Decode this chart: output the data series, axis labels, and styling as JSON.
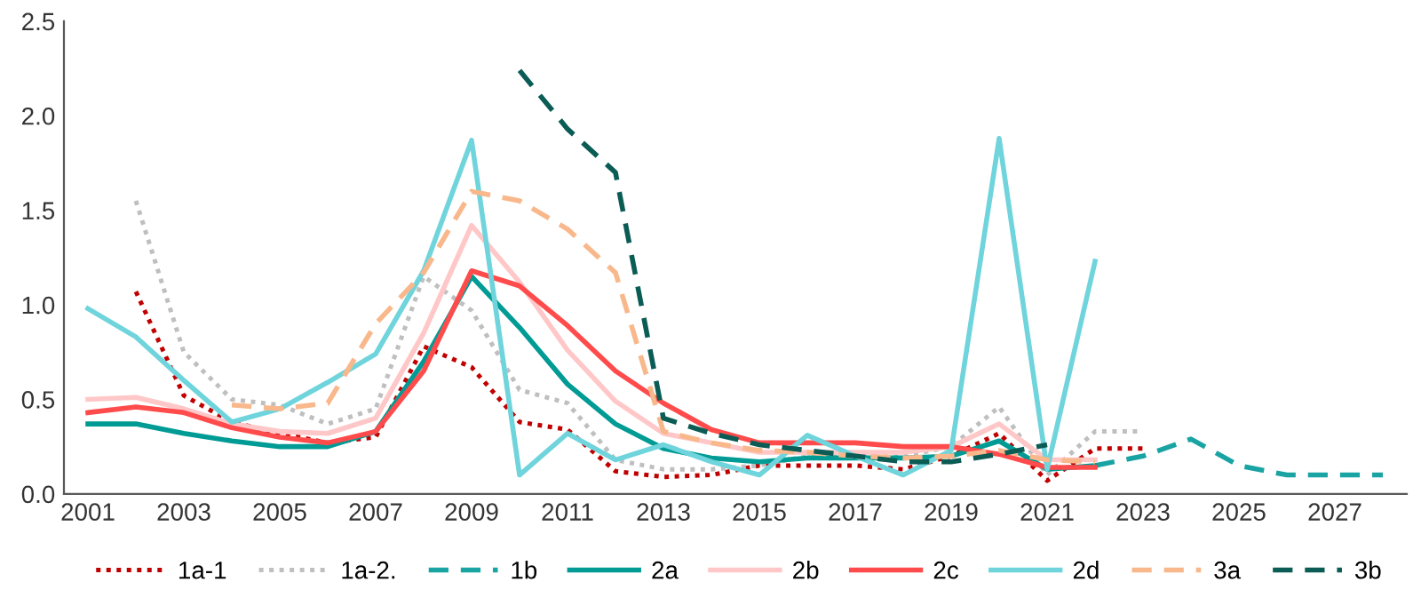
{
  "chart_data": {
    "type": "line",
    "x": [
      2001,
      2002,
      2003,
      2004,
      2005,
      2006,
      2007,
      2008,
      2009,
      2010,
      2011,
      2012,
      2013,
      2014,
      2015,
      2016,
      2017,
      2018,
      2019,
      2020,
      2021,
      2022,
      2023,
      2024,
      2025,
      2026,
      2027,
      2028
    ],
    "xlim": [
      2000.5,
      2028.5
    ],
    "xticks": [
      2001,
      2003,
      2005,
      2007,
      2009,
      2011,
      2013,
      2015,
      2017,
      2019,
      2021,
      2023,
      2025,
      2027
    ],
    "ylim": [
      0,
      2.5
    ],
    "yticks": [
      {
        "value": 0,
        "label": "0.0"
      },
      {
        "value": 0.5,
        "label": "0.5"
      },
      {
        "value": 1,
        "label": "1.0"
      },
      {
        "value": 1.5,
        "label": "1.5"
      },
      {
        "value": 2,
        "label": "2.0"
      },
      {
        "value": 2.5,
        "label": "2.5"
      }
    ],
    "grid": false,
    "legend": "bottom",
    "series": [
      {
        "name": "1a-1",
        "color": "#c00000",
        "line_style": "dotted",
        "values": [
          null,
          1.07,
          0.52,
          0.38,
          0.32,
          0.27,
          0.3,
          0.78,
          0.67,
          0.38,
          0.34,
          0.12,
          0.09,
          0.1,
          0.15,
          0.15,
          0.15,
          0.13,
          0.2,
          0.32,
          0.07,
          0.24,
          0.24,
          null,
          null,
          null,
          null,
          null
        ]
      },
      {
        "name": "1a-2.",
        "color": "#bfbfbf",
        "line_style": "dotted",
        "values": [
          null,
          1.55,
          0.75,
          0.5,
          0.47,
          0.37,
          0.45,
          1.15,
          0.97,
          0.55,
          0.48,
          0.18,
          0.13,
          0.13,
          0.15,
          0.2,
          0.2,
          0.2,
          0.25,
          0.46,
          0.1,
          0.33,
          0.33,
          null,
          null,
          null,
          null,
          null
        ]
      },
      {
        "name": "1b",
        "color": "#1aa3a3",
        "line_style": "dashed",
        "values": [
          null,
          null,
          null,
          null,
          null,
          null,
          null,
          null,
          null,
          null,
          null,
          null,
          null,
          null,
          null,
          null,
          null,
          null,
          null,
          null,
          null,
          0.15,
          0.2,
          0.29,
          0.15,
          0.1,
          0.1,
          0.1
        ]
      },
      {
        "name": "2a",
        "color": "#009b94",
        "line_style": "solid",
        "values": [
          0.37,
          0.37,
          0.32,
          0.28,
          0.25,
          0.25,
          0.33,
          0.7,
          1.15,
          0.88,
          0.58,
          0.37,
          0.24,
          0.19,
          0.17,
          0.19,
          0.19,
          0.19,
          0.2,
          0.28,
          0.13,
          0.15,
          null,
          null,
          null,
          null,
          null,
          null
        ]
      },
      {
        "name": "2b",
        "color": "#ffc7c7",
        "line_style": "solid",
        "values": [
          0.5,
          0.51,
          0.45,
          0.37,
          0.33,
          0.32,
          0.4,
          0.85,
          1.42,
          1.12,
          0.76,
          0.49,
          0.32,
          0.27,
          0.22,
          0.22,
          0.22,
          0.22,
          0.25,
          0.37,
          0.18,
          0.18,
          null,
          null,
          null,
          null,
          null,
          null
        ]
      },
      {
        "name": "2c",
        "color": "#ff4b4b",
        "line_style": "solid",
        "values": [
          0.43,
          0.46,
          0.43,
          0.35,
          0.3,
          0.27,
          0.33,
          0.65,
          1.18,
          1.1,
          0.89,
          0.65,
          0.48,
          0.34,
          0.27,
          0.27,
          0.27,
          0.25,
          0.25,
          0.21,
          0.14,
          0.14,
          null,
          null,
          null,
          null,
          null,
          null
        ]
      },
      {
        "name": "2d",
        "color": "#6fd4dc",
        "line_style": "solid",
        "values": [
          0.98,
          0.83,
          0.6,
          0.38,
          0.45,
          0.59,
          0.74,
          1.18,
          1.87,
          0.1,
          0.32,
          0.18,
          0.26,
          0.17,
          0.1,
          0.31,
          0.2,
          0.1,
          0.23,
          1.88,
          0.13,
          1.23,
          null,
          null,
          null,
          null,
          null,
          null
        ]
      },
      {
        "name": "3a",
        "color": "#f8b88b",
        "line_style": "dashed",
        "values": [
          null,
          null,
          null,
          0.47,
          0.45,
          0.48,
          0.9,
          1.17,
          1.6,
          1.55,
          1.4,
          1.17,
          0.33,
          0.27,
          0.23,
          0.22,
          0.2,
          0.19,
          0.2,
          0.23,
          0.18,
          0.17,
          null,
          null,
          null,
          null,
          null,
          null
        ]
      },
      {
        "name": "3b",
        "color": "#0b5c55",
        "line_style": "dashed",
        "values": [
          null,
          null,
          null,
          null,
          null,
          null,
          null,
          null,
          null,
          2.24,
          1.93,
          1.7,
          0.4,
          0.32,
          0.26,
          0.23,
          0.2,
          0.17,
          0.17,
          0.21,
          0.26,
          null,
          null,
          null,
          null,
          null,
          null,
          null
        ]
      }
    ]
  }
}
